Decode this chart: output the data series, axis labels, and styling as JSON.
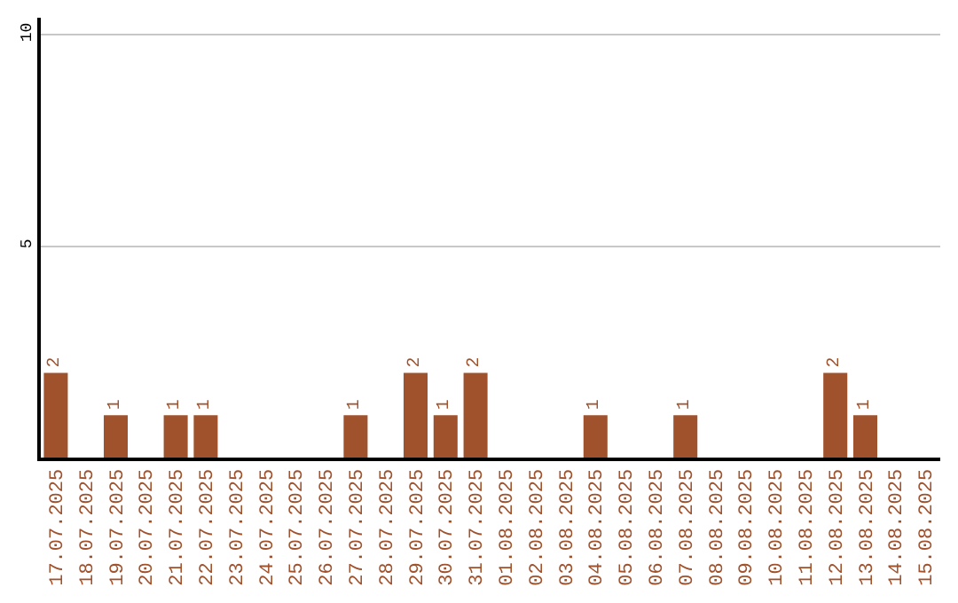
{
  "chart_data": {
    "type": "bar",
    "categories": [
      "17.07.2025",
      "18.07.2025",
      "19.07.2025",
      "20.07.2025",
      "21.07.2025",
      "22.07.2025",
      "23.07.2025",
      "24.07.2025",
      "25.07.2025",
      "26.07.2025",
      "27.07.2025",
      "28.07.2025",
      "29.07.2025",
      "30.07.2025",
      "31.07.2025",
      "01.08.2025",
      "02.08.2025",
      "03.08.2025",
      "04.08.2025",
      "05.08.2025",
      "06.08.2025",
      "07.08.2025",
      "08.08.2025",
      "09.08.2025",
      "10.08.2025",
      "11.08.2025",
      "12.08.2025",
      "13.08.2025",
      "14.08.2025",
      "15.08.2025"
    ],
    "values": [
      2,
      0,
      1,
      0,
      1,
      1,
      0,
      0,
      0,
      0,
      1,
      0,
      2,
      1,
      2,
      0,
      0,
      0,
      1,
      0,
      0,
      1,
      0,
      0,
      0,
      0,
      2,
      1,
      0,
      0
    ],
    "value_labels": [
      "2",
      null,
      "1",
      null,
      "1",
      "1",
      null,
      null,
      null,
      null,
      "1",
      null,
      "2",
      "1",
      "2",
      null,
      null,
      null,
      "1",
      null,
      null,
      "1",
      null,
      null,
      null,
      null,
      "2",
      "1",
      null,
      null
    ],
    "color": "#a0522d",
    "ylim": [
      0,
      10.4
    ],
    "yticks": [
      5,
      10
    ],
    "grid": "y"
  }
}
